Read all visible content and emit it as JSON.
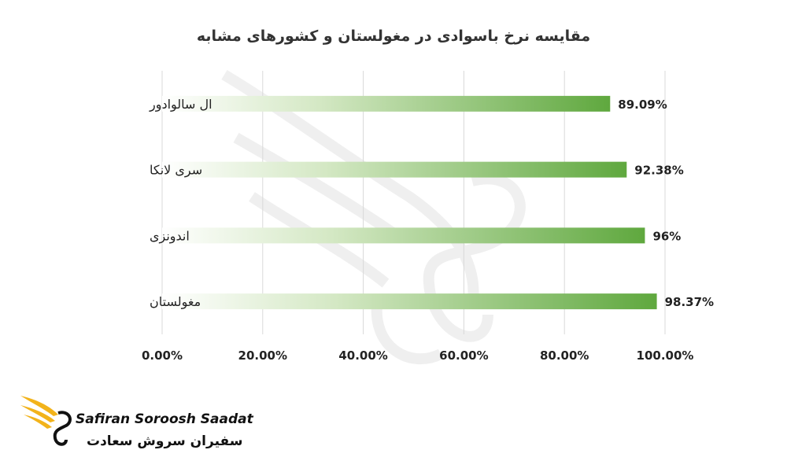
{
  "chart_data": {
    "type": "bar",
    "orientation": "horizontal",
    "title": "مقایسه نرخ باسوادی در مغولستان و کشورهای مشابه",
    "categories": [
      "ال سالوادور",
      "سری لانکا",
      "اندونزی",
      "مغولستان"
    ],
    "values": [
      89.09,
      92.38,
      96,
      98.37
    ],
    "value_labels": [
      "89.09%",
      "92.38%",
      "96%",
      "98.37%"
    ],
    "xlim": [
      0,
      100
    ],
    "xticks": [
      "0.00%",
      "20.00%",
      "40.00%",
      "60.00%",
      "80.00%",
      "100.00%"
    ],
    "grid": true,
    "legend": "none",
    "bar_color": "#6ab04c"
  },
  "watermark": {
    "brand_en": "Safiran Soroosh Saadat",
    "brand_fa": "سفیران سروش سعادت",
    "icon": "phoenix-wing-icon"
  }
}
